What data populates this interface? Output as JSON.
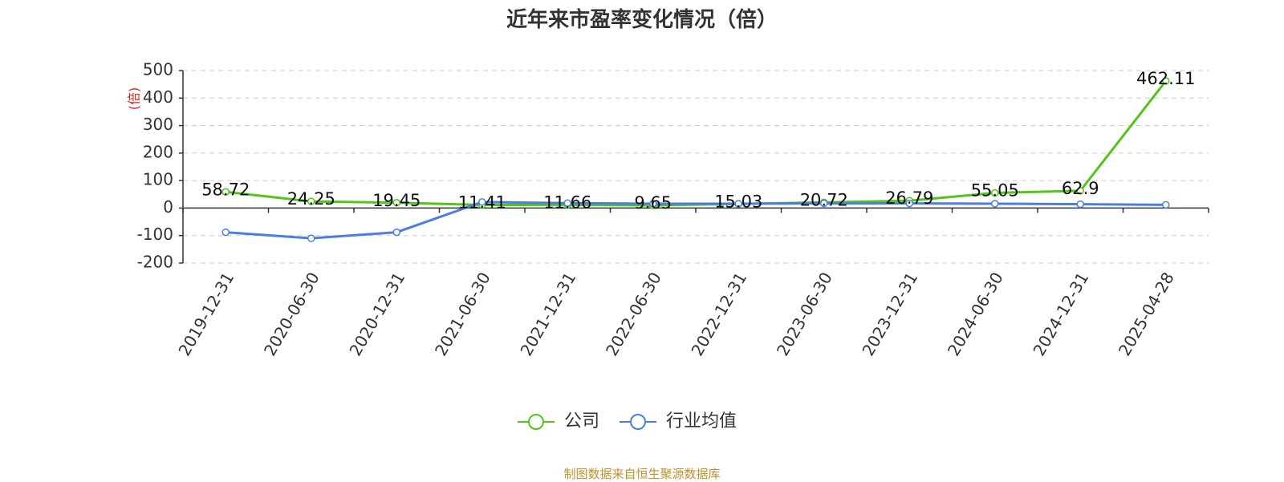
{
  "title": "近年来市盈率变化情况（倍）",
  "source": "制图数据来自恒生聚源数据库",
  "colors": {
    "company": "#52c41a",
    "industry": "#4a7fe0",
    "grid": "#cccccc",
    "axis": "#333333",
    "ylabel": "#e02020"
  },
  "chart_data": {
    "type": "line",
    "title": "近年来市盈率变化情况（倍）",
    "ylabel": "(倍)",
    "ylim": [
      -200,
      500
    ],
    "yticks": [
      500,
      400,
      300,
      200,
      100,
      0,
      -100,
      -200
    ],
    "grid": true,
    "legend_position": "bottom-center",
    "categories": [
      "2019-12-31",
      "2020-06-30",
      "2020-12-31",
      "2021-06-30",
      "2021-12-31",
      "2022-06-30",
      "2022-12-31",
      "2023-06-30",
      "2023-12-31",
      "2024-06-30",
      "2024-12-31",
      "2025-04-28"
    ],
    "series": [
      {
        "name": "公司",
        "color": "#52c41a",
        "values": [
          58.72,
          24.25,
          19.45,
          11.41,
          11.66,
          9.65,
          15.03,
          20.72,
          26.79,
          55.05,
          62.9,
          462.11
        ],
        "labels": [
          "58.72",
          "24.25",
          "19.45",
          "11.41",
          "11.66",
          "9.65",
          "15.03",
          "20.72",
          "26.79",
          "55.05",
          "62.9",
          "462.11"
        ]
      },
      {
        "name": "行业均值",
        "color": "#4a7fe0",
        "values": [
          -88,
          -110,
          -88,
          22,
          18,
          16,
          16,
          17,
          17,
          16,
          14,
          12
        ]
      }
    ]
  }
}
